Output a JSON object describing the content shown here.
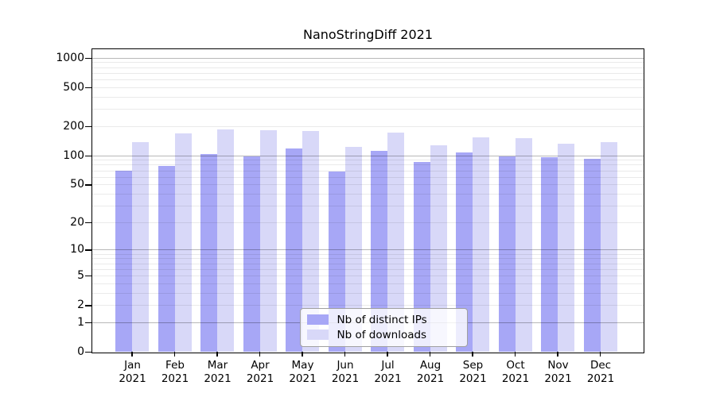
{
  "title": "NanoStringDiff 2021",
  "chart_data": {
    "type": "bar",
    "title": "NanoStringDiff 2021",
    "categories": [
      "Jan",
      "Feb",
      "Mar",
      "Apr",
      "May",
      "Jun",
      "Jul",
      "Aug",
      "Sep",
      "Oct",
      "Nov",
      "Dec"
    ],
    "category_year": "2021",
    "series": [
      {
        "name": "Nb of distinct IPs",
        "color": "#a7a7f6",
        "values": [
          70,
          78,
          103,
          97,
          118,
          68,
          112,
          85,
          107,
          97,
          96,
          92
        ]
      },
      {
        "name": "Nb of downloads",
        "color": "#d8d8f8",
        "values": [
          137,
          168,
          186,
          180,
          179,
          122,
          172,
          128,
          154,
          150,
          131,
          136
        ]
      }
    ],
    "xlabel": "",
    "ylabel": "",
    "y_ticks": [
      0,
      1,
      2,
      5,
      10,
      20,
      50,
      100,
      200,
      500,
      1000
    ],
    "y_scale": "log10(value+1)",
    "ylim": [
      0,
      1250
    ],
    "grid": "horizontal",
    "legend_position": "bottom-center",
    "colors": {
      "background": "#ffffff",
      "axis": "#000000",
      "minor_gridline": "#ebebeb",
      "major_gridline": "#b8b8b8",
      "legend_border": "#a0a0a0"
    }
  }
}
